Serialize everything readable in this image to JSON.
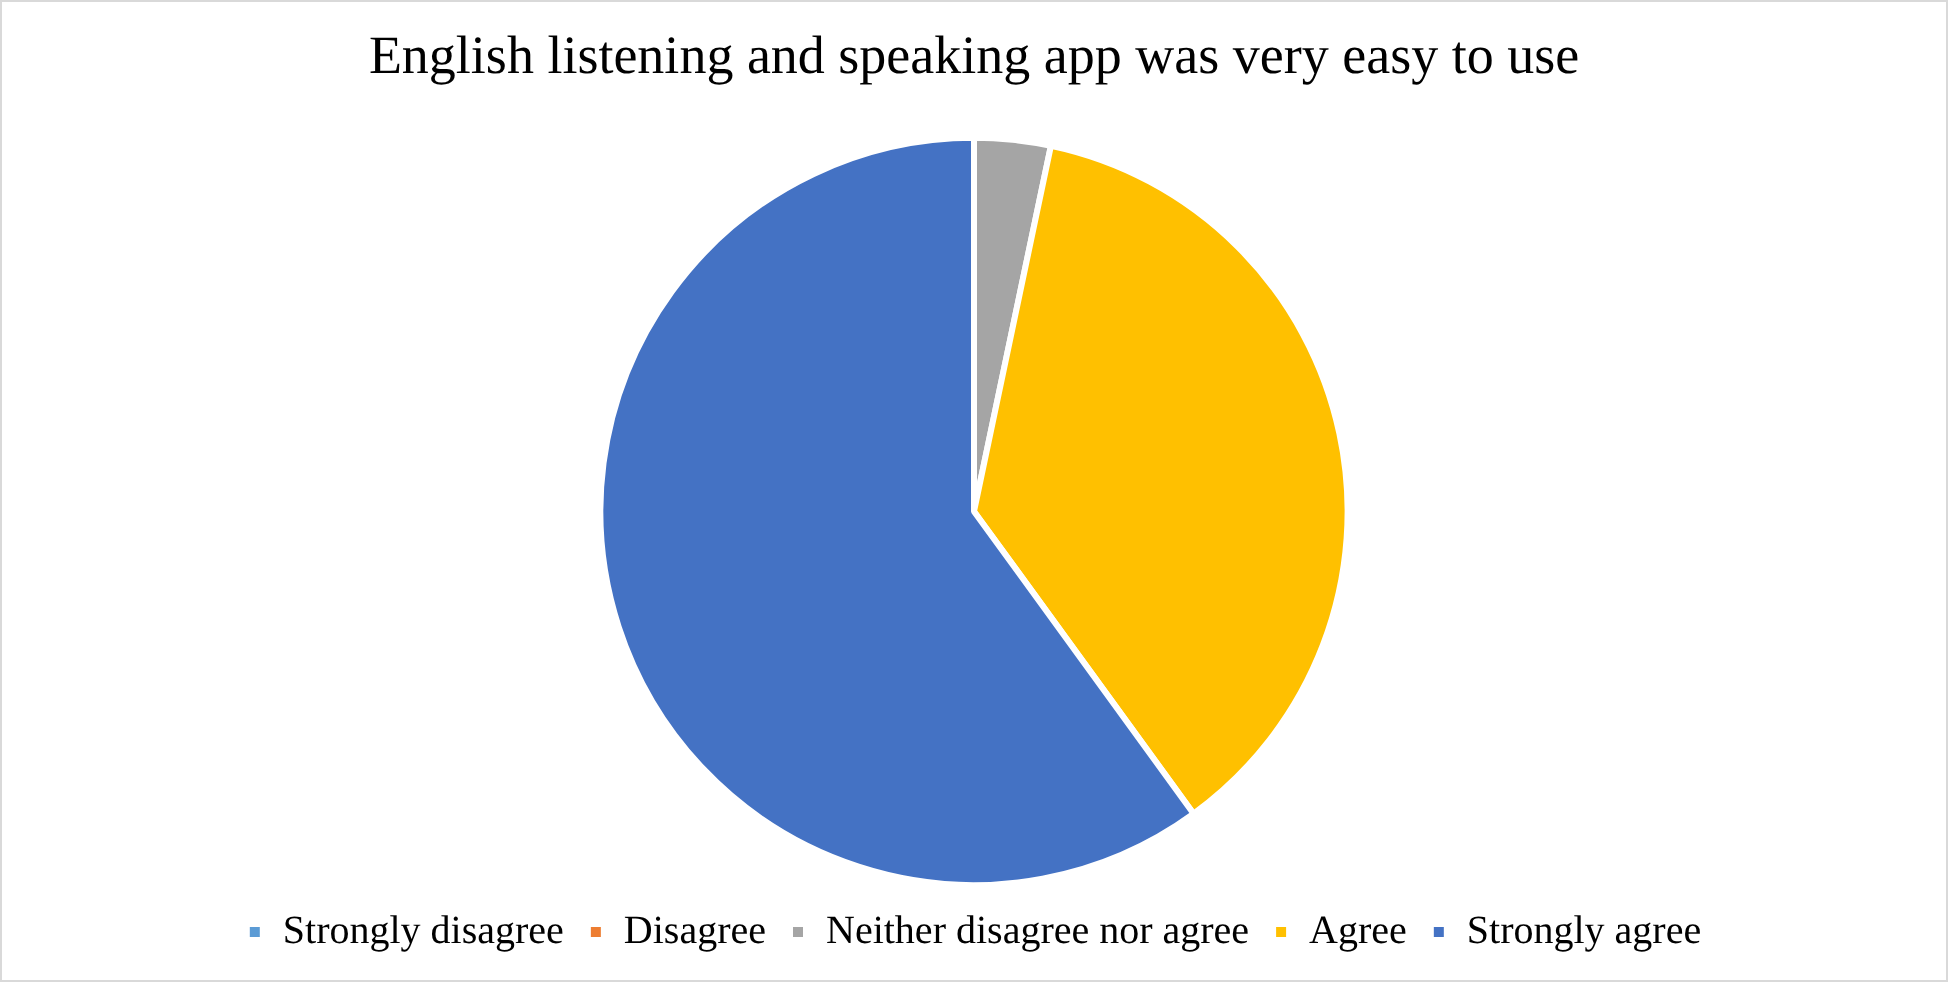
{
  "chart_data": {
    "type": "pie",
    "title": "English listening and speaking app was very easy to use",
    "categories": [
      "Strongly disagree",
      "Disagree",
      "Neither disagree nor agree",
      "Agree",
      "Strongly agree"
    ],
    "values": [
      0,
      0,
      3.3,
      36.7,
      60
    ],
    "colors": [
      "#5b9bd5",
      "#ed7d31",
      "#a5a5a5",
      "#ffc000",
      "#4472c4"
    ],
    "legend": "bottom"
  }
}
